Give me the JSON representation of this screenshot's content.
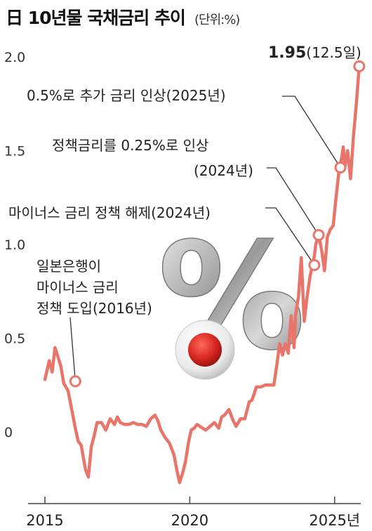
{
  "header": {
    "title": "日 10년물 국채금리 추이",
    "unit": "(단위:%)"
  },
  "colors": {
    "line": "#e9746a",
    "axis": "#444444",
    "grid": "#d9d9d9",
    "text": "#222222",
    "flag_red": "#d7261f"
  },
  "chart_data": {
    "type": "line",
    "title": "日 10년물 국채금리 추이",
    "unit": "(단위:%)",
    "ylim": [
      -0.3,
      2.0
    ],
    "xlim": [
      2014.9,
      2025.95
    ],
    "y_ticks": [
      {
        "v": 2.0,
        "label": "2.0"
      },
      {
        "v": 1.5,
        "label": "1.5"
      },
      {
        "v": 1.0,
        "label": "1.0"
      },
      {
        "v": 0.5,
        "label": "0.5"
      },
      {
        "v": 0,
        "label": "0"
      }
    ],
    "x_ticks": [
      {
        "v": 2015,
        "label": "2015"
      },
      {
        "v": 2020,
        "label": "2020"
      },
      {
        "v": 2025,
        "label": "2025년"
      }
    ],
    "grid": false,
    "x": [
      2015.0,
      2015.15,
      2015.25,
      2015.35,
      2015.45,
      2015.55,
      2015.65,
      2015.8,
      2015.95,
      2016.05,
      2016.15,
      2016.25,
      2016.4,
      2016.5,
      2016.6,
      2016.7,
      2016.8,
      2016.95,
      2017.1,
      2017.25,
      2017.4,
      2017.5,
      2017.6,
      2017.75,
      2017.9,
      2018.05,
      2018.2,
      2018.35,
      2018.5,
      2018.65,
      2018.8,
      2018.9,
      2019.0,
      2019.15,
      2019.3,
      2019.45,
      2019.55,
      2019.65,
      2019.75,
      2019.85,
      2019.95,
      2020.05,
      2020.15,
      2020.25,
      2020.35,
      2020.45,
      2020.55,
      2020.7,
      2020.85,
      2021.0,
      2021.1,
      2021.2,
      2021.35,
      2021.5,
      2021.6,
      2021.75,
      2021.9,
      2022.05,
      2022.15,
      2022.3,
      2022.45,
      2022.6,
      2022.75,
      2022.9,
      2023.0,
      2023.1,
      2023.2,
      2023.3,
      2023.4,
      2023.5,
      2023.6,
      2023.65,
      2023.75,
      2023.85,
      2023.95,
      2024.05,
      2024.15,
      2024.25,
      2024.3,
      2024.35,
      2024.45,
      2024.55,
      2024.65,
      2024.75,
      2024.85,
      2024.95,
      2025.05,
      2025.15,
      2025.25,
      2025.3,
      2025.35,
      2025.45,
      2025.55,
      2025.65,
      2025.75,
      2025.85
    ],
    "series": [
      {
        "values": [
          0.28,
          0.38,
          0.32,
          0.45,
          0.4,
          0.35,
          0.26,
          0.22,
          0.1,
          0.02,
          -0.05,
          -0.07,
          -0.2,
          -0.24,
          -0.08,
          -0.02,
          0.05,
          0.05,
          0.01,
          0.07,
          0.04,
          0.08,
          0.05,
          0.04,
          0.04,
          0.05,
          0.04,
          0.04,
          0.03,
          0.07,
          0.09,
          0.06,
          0.01,
          -0.03,
          -0.06,
          -0.12,
          -0.2,
          -0.27,
          -0.22,
          -0.16,
          -0.06,
          0.01,
          0.02,
          0.04,
          0.03,
          0.02,
          0.01,
          0.03,
          0.05,
          0.02,
          0.08,
          0.09,
          0.12,
          0.06,
          0.03,
          0.07,
          0.07,
          0.16,
          0.17,
          0.24,
          0.24,
          0.25,
          0.25,
          0.25,
          0.35,
          0.47,
          0.41,
          0.47,
          0.42,
          0.62,
          0.45,
          0.62,
          0.72,
          0.93,
          0.59,
          0.72,
          0.83,
          0.9,
          0.94,
          1.0,
          1.05,
          0.97,
          0.86,
          1.04,
          1.08,
          1.1,
          1.25,
          1.39,
          1.47,
          1.52,
          1.41,
          1.5,
          1.35,
          1.58,
          1.75,
          1.95
        ]
      }
    ],
    "markers": [
      {
        "x": 2016.05,
        "y": 0.27
      },
      {
        "x": 2024.3,
        "y": 0.89
      },
      {
        "x": 2024.45,
        "y": 1.05
      },
      {
        "x": 2025.2,
        "y": 1.41
      },
      {
        "x": 2025.85,
        "y": 1.95
      }
    ],
    "annotations": [
      {
        "lines": [
          "일본은행이",
          "마이너스 금리",
          "정책 도입(2016년)"
        ]
      },
      {
        "lines": [
          "마이너스 금리 정책 해제(2024년)"
        ]
      },
      {
        "lines": [
          "정책금리를 0.25%로 인상",
          "(2024년)"
        ]
      },
      {
        "lines": [
          "0.5%로 추가 금리 인상(2025년)"
        ]
      },
      {
        "value": "1.95",
        "suffix": "(12.5일)"
      }
    ]
  },
  "illustration": {
    "percent_glyph": "%"
  }
}
